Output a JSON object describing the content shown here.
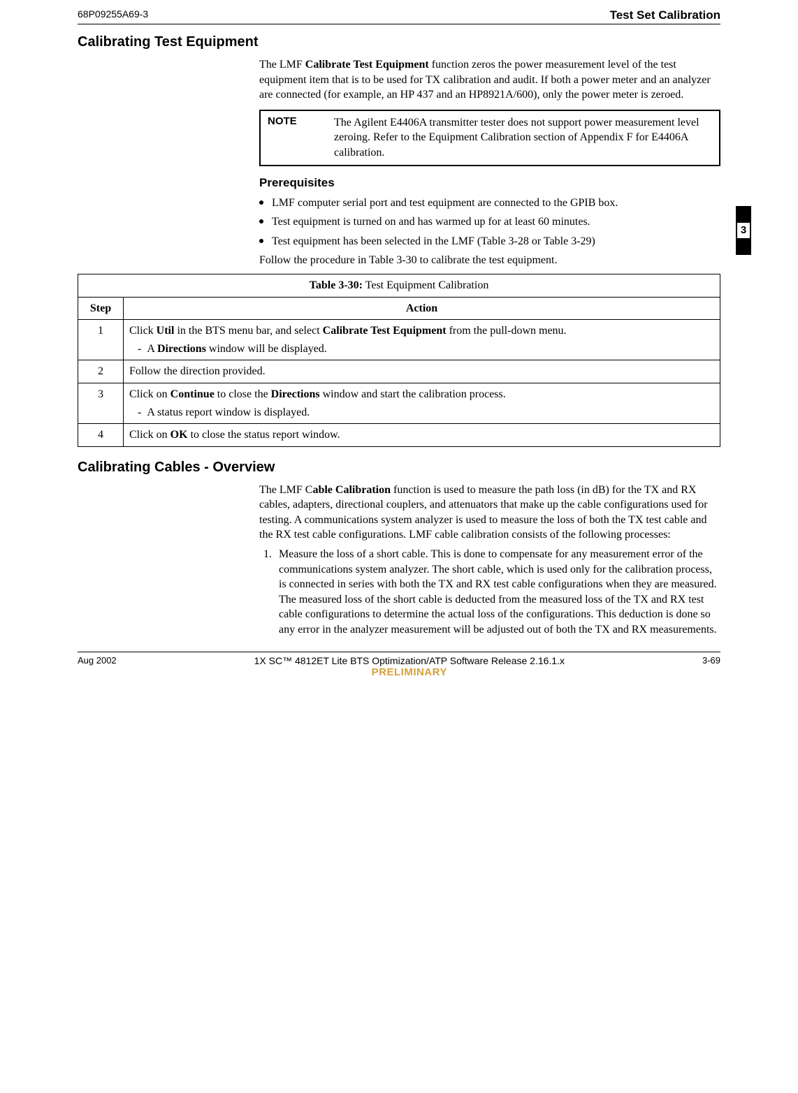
{
  "header": {
    "doc_id": "68P09255A69-3",
    "section": "Test Set Calibration"
  },
  "tab": {
    "chapter": "3"
  },
  "s1": {
    "title": "Calibrating Test Equipment",
    "intro_html": "The LMF <b>Calibrate Test Equipment</b> function zeros the power measurement level of the test equipment item that is to be used for TX calibration and audit. If both a power meter and an analyzer are connected (for example, an HP 437 and an HP8921A/600), only the power meter is zeroed.",
    "note": {
      "label": "NOTE",
      "text": "The Agilent E4406A transmitter tester does not support power measurement level zeroing. Refer to the Equipment Calibration section of Appendix F for E4406A calibration."
    },
    "prereq_title": "Prerequisites",
    "prereqs": [
      "LMF computer serial port and test equipment are connected to the GPIB box.",
      "Test equipment is turned on and has warmed up for at least 60 minutes.",
      "Test equipment has been selected in the LMF (Table 3-28 or Table 3-29)"
    ],
    "follow": "Follow the procedure in Table 3-30 to calibrate the test equipment."
  },
  "table": {
    "caption_bold": "Table 3-30:",
    "caption_rest": " Test Equipment Calibration",
    "col_step": "Step",
    "col_action": "Action",
    "rows": [
      {
        "step": "1",
        "action_html": "Click <b>Util</b> in the BTS menu bar, and select <b>Calibrate Test Equipment</b> from the pull-down menu.",
        "sub_html": "-&nbsp;&nbsp;A <b>Directions</b> window will be displayed."
      },
      {
        "step": "2",
        "action_html": "Follow the direction provided."
      },
      {
        "step": "3",
        "action_html": "Click on <b>Continue</b> to close the <b>Directions</b> window and start the calibration process.",
        "sub_html": "-&nbsp;&nbsp;A status report window is displayed."
      },
      {
        "step": "4",
        "action_html": "Click on <b>OK</b> to close the status report window."
      }
    ]
  },
  "s2": {
    "title": "Calibrating Cables - Overview",
    "intro_html": "The LMF C<b>able Calibration</b> function is used to measure the path loss (in dB) for the TX and RX cables, adapters, directional couplers, and attenuators that make up the cable configurations used for testing. A communications system analyzer is used to measure the loss of both the TX test cable and the RX test cable configurations. LMF cable calibration consists of the following processes:",
    "list": [
      "Measure the loss of a short cable. This is done to compensate for any measurement error of the communications system analyzer. The short cable, which is used only for the calibration process, is connected in series with both the TX and RX test cable configurations when they are measured. The measured loss of the short cable is deducted from the measured loss of the TX and RX test cable configurations to determine the actual loss of the configurations. This deduction is done so any error in the analyzer measurement will be adjusted out of both the TX and RX measurements."
    ]
  },
  "footer": {
    "date": "Aug 2002",
    "title": "1X SC™ 4812ET Lite BTS Optimization/ATP Software Release 2.16.1.x",
    "prelim": "PRELIMINARY",
    "page": "3-69"
  }
}
